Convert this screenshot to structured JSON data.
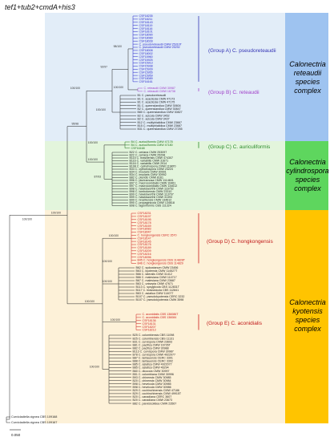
{
  "title": "tef1+tub2+cmdA+his3",
  "complexes": [
    {
      "id": "reteaudii",
      "label": "Calonectria reteaudii species complex",
      "color": "#9ec3f0"
    },
    {
      "id": "cylindrospora",
      "label": "Calonectria cylindrospora species complex",
      "color": "#5ed65e"
    },
    {
      "id": "kyotensis",
      "label": "Calonectria kyotensis species complex",
      "color": "#ffc400"
    }
  ],
  "groups": [
    {
      "label": "(Group A) C. pseudoreteaudii",
      "color": "#3434b5"
    },
    {
      "label": "(Group B) C. reteaudii",
      "color": "#a040c8"
    },
    {
      "label": "(Group C) C. auriculiformis",
      "color": "#2a8c2a"
    },
    {
      "label": "(Group D) C. hongkongensis",
      "color": "#c01818"
    },
    {
      "label": "(Group E) C. aconidialis",
      "color": "#c01818"
    }
  ],
  "scale_bar": "0.050",
  "outgroups": [
    "Curvicladiella cignea CBS 109168",
    "Curvicladiella cignea CBS 109167"
  ],
  "taxa": {
    "groupA": [
      "CSF18235",
      "CSF18211",
      "CSF18143",
      "CSF18119",
      "CSF18116",
      "CSF18101",
      "CSF18090",
      "CSF18089",
      "CSF18028",
      "C. pseudoreteaudii CMW 25310T",
      "C. pseudoreteaudii CMW 25292",
      "CSF18008",
      "CSF18002",
      "CSF15960",
      "CSF15925",
      "CSF15913",
      "CSF15938",
      "CSF15939",
      "CSF15955",
      "CSF15959",
      "CSF18089",
      "CSF16161"
    ],
    "groupB": [
      "C. reteaudii CMW 30987",
      "C. reteaudii CMW 16738"
    ],
    "reteaudii_other": [
      "B1 C. pseudoreteaudii",
      "B1 C. acaciicola CMW 47173",
      "B1 C. acaciicola CMW 47175",
      "B1 C. queenslandica CMW 30604",
      "B2 C. queenslandica CMW 30847",
      "B80 C. queenslandica CMW 30827",
      "B2 C. acicola CMW 3452",
      "B2 C. acicola CMW 3437",
      "B12 C. multiphialidica CMW 23667",
      "B15 C. multiphialidica CMW 23687",
      "B31 C. queenslandica CMW 27255"
    ],
    "groupC": [
      "B4 C. auriculiformis CMW 47178",
      "B4 C. auriculiformis CMW 47180",
      "CSF16168"
    ],
    "cylindrospora_other": [
      "B22 C. ceriana CMW 253097",
      "B22 C. ceriana CMW 25298",
      "B115 C. brasiliensis CMW 474307",
      "B116 C. variabilis CMW 31671",
      "B116 C. variabilis CMW 2914",
      "B108 C. cylindrospora CMW 119870",
      "B33 C. cylindrospora CMW 23224",
      "B34 C. insularis CMW 30991",
      "B34 C. insularis CMW 30992",
      "B82 C. pteridis CMW 8161",
      "B96 C. pluriramosa CMW 1114601",
      "B97 C. macroconidialis CMW 10461",
      "B97 C. macroconidialis CMW 134612",
      "B98 C. hawksworthii CMW 116752",
      "B98 C. lombokensis CMW 23310",
      "B99 C. hawksworthii CMW 113707",
      "B99 C. hawksworthii CMW 31393",
      "B99 C. braziliensis CMW 134612",
      "B90 C. propaginicola CMW 134618",
      "B98 C. lageniformis CBS 111324"
    ],
    "groupD": [
      "CSF18231",
      "CSF18197",
      "CSF18195",
      "CSF18178",
      "CSF18169",
      "CSF18083",
      "CSF18047",
      "C. hongkongensis CERC 3570",
      "CSF18147",
      "CSF18145",
      "CSF18176",
      "CSF18189",
      "CSF18209",
      "CSF18216",
      "CSF18096",
      "B45 C. hongkongensis CBS 114828T",
      "B46 C. hongkongensis CBS 114829"
    ],
    "groupE": [
      "C. aconidialis CBS 136086T",
      "C. aconidialis CBS 136084",
      "CSF18136",
      "CSF18131",
      "CSF18207",
      "CSF18213"
    ],
    "kyotensis_other": [
      "B62 C. sydowianum CMW 23456",
      "B63 C. kyotensis CMW 114527T",
      "B66 C. lateralis CMW 31412",
      "B66 C. malesiana CMW 114717",
      "B67 C. malesiana CMW 23687",
      "B63 C. unisepta CMW 47671",
      "B113 C. syzygiicola CBS 112831T",
      "B117 C. brassicicola CBS 112841",
      "B63 C. asiatica CMW 114077",
      "B107 C. pseudokyotensis CERC 3232",
      "B107 C. pseudokyotensis CMW 3598",
      "B25 C. colombiensis CBS 11098",
      "B25 C. colombiensis CBS 11131",
      "B31 C. curvispora CMW 23693",
      "B81 C. pacifica CMW 16726T",
      "B82 C. pacifica CMW 30988",
      "B113 C. curvispora CMW 30987",
      "B78 C. curvispora CMW 4922077",
      "B87 C. lantauensis CERC 3301",
      "B88 C. lantauensis CERC 3302",
      "B85 C. asiatica CMW 4922077",
      "B85 C. asiatica CMW 46294",
      "B60 C. dicoccia CMW 30997",
      "B51 C. colombiana CMW 30996",
      "B93 C. chinensis CMW 30985",
      "B20 C. chinensis CMW 30984",
      "B98 C. heveicola CMW 30985",
      "B98 C. heveicola CMW 30986",
      "B29 C. cochinchinensis CMW 47186",
      "B29 C. cochinchinensis CMW 49915T",
      "B20 C. canadiana CERC 3607",
      "B20 C. canadiana CMW 23673",
      "B82 C. parvisicolidea CMW 23567"
    ]
  },
  "support_values": [
    "95/98",
    "100/100",
    "100/100",
    "100/100",
    "100/100",
    "92/97",
    "98/100",
    "100/100",
    "100/100",
    "100/100",
    "87/93",
    "100/100",
    "100/100",
    "100/100",
    "100/100",
    "100/100",
    "100/100"
  ]
}
